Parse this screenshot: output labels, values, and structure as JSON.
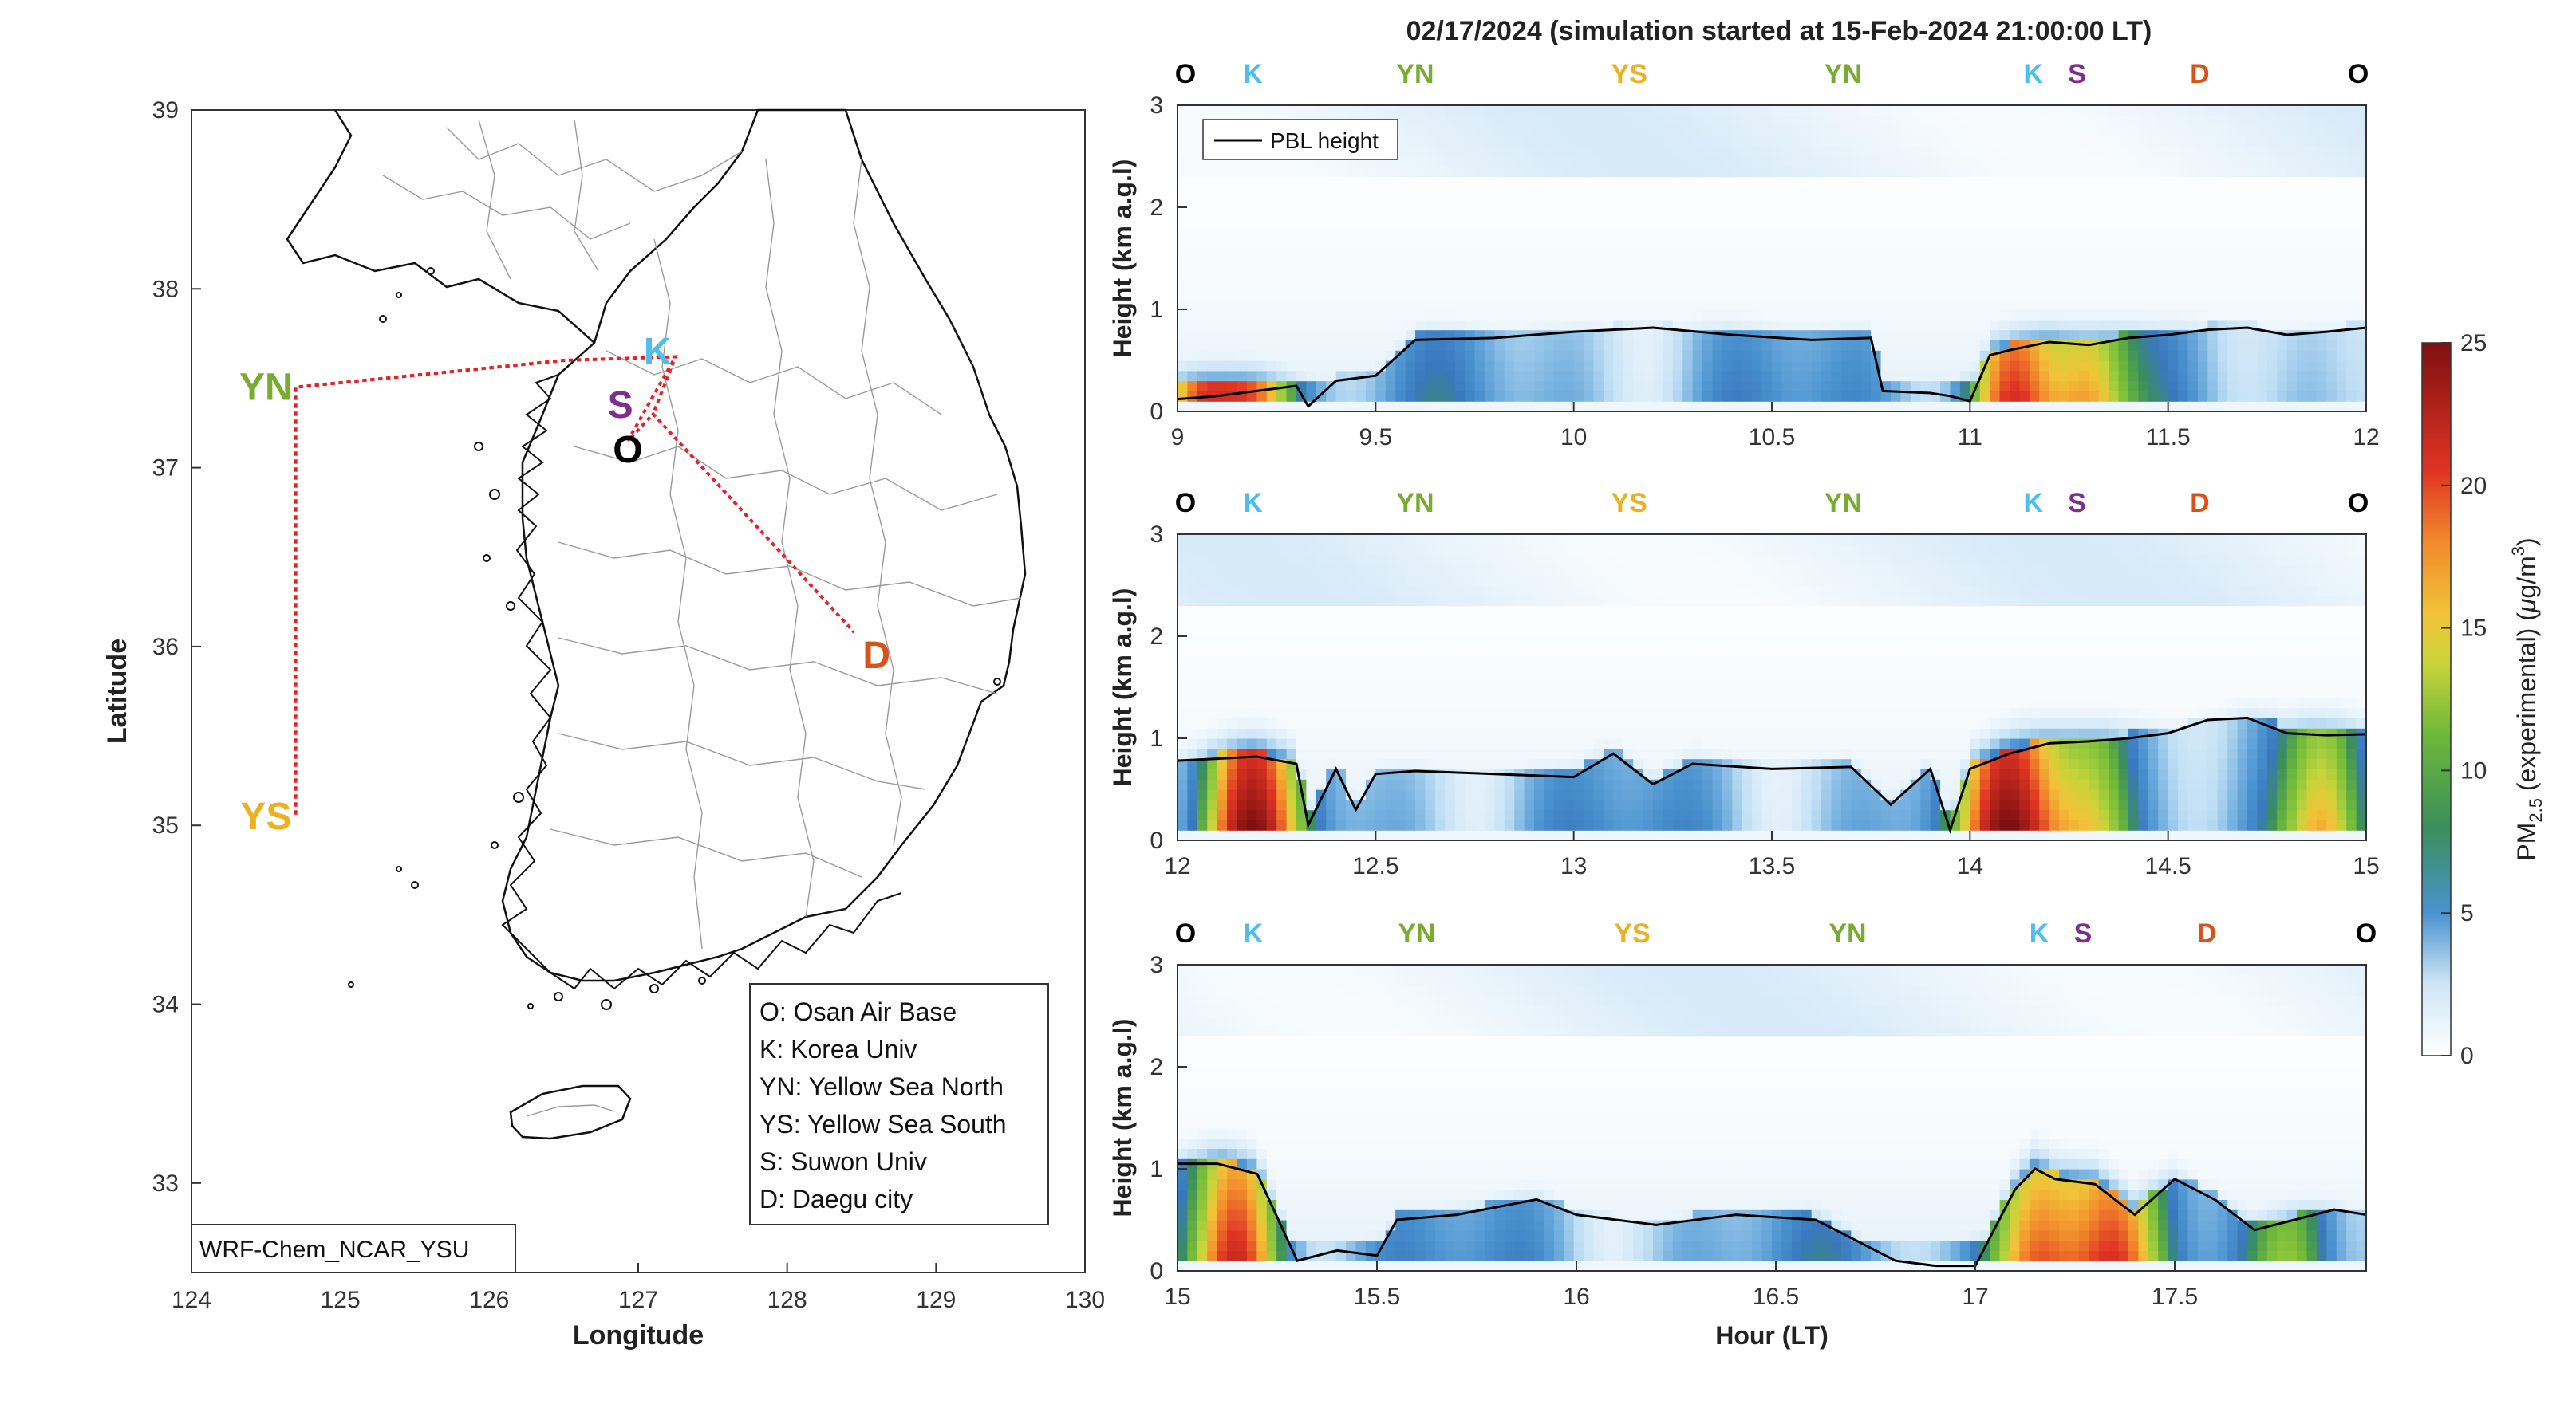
{
  "figure": {
    "title": "02/17/2024 (simulation started at 15-Feb-2024 21:00:00 LT)"
  },
  "map": {
    "model_label": "WRF-Chem_NCAR_YSU",
    "xlabel": "Longitude",
    "ylabel": "Latitude",
    "xlim": [
      124,
      130
    ],
    "ylim": [
      32.5,
      39
    ],
    "xticks": [
      "124",
      "125",
      "126",
      "127",
      "128",
      "129",
      "130"
    ],
    "yticks": [
      "33",
      "34",
      "35",
      "36",
      "37",
      "38",
      "39"
    ],
    "sites": [
      {
        "code": "O",
        "lon": 126.93,
        "lat": 37.1,
        "color": "#000000"
      },
      {
        "code": "K",
        "lon": 127.13,
        "lat": 37.65,
        "color": "#4DBEEE"
      },
      {
        "code": "YN",
        "lon": 124.5,
        "lat": 37.45,
        "color": "#77AC30"
      },
      {
        "code": "YS",
        "lon": 124.5,
        "lat": 35.05,
        "color": "#EDB120"
      },
      {
        "code": "S",
        "lon": 126.88,
        "lat": 37.35,
        "color": "#7E2F8E"
      },
      {
        "code": "D",
        "lon": 128.6,
        "lat": 35.95,
        "color": "#D95319"
      }
    ],
    "track_color": "#E8202A",
    "track": [
      [
        126.93,
        37.15
      ],
      [
        127.25,
        37.62
      ],
      [
        126.5,
        37.6
      ],
      [
        124.7,
        37.45
      ],
      [
        124.7,
        35.05
      ],
      [
        124.7,
        37.45
      ],
      [
        126.5,
        37.6
      ],
      [
        127.25,
        37.62
      ],
      [
        127.1,
        37.3
      ],
      [
        128.45,
        36.08
      ],
      [
        127.1,
        37.3
      ],
      [
        126.93,
        37.15
      ]
    ],
    "legend": [
      "O: Osan Air Base",
      "K: Korea Univ",
      "YN: Yellow Sea North",
      "YS: Yellow Sea South",
      "S: Suwon Univ",
      "D: Daegu city"
    ]
  },
  "profiles": {
    "ylabel": "Height (km a.g.l)",
    "xlabel": "Hour (LT)",
    "pbl_legend": "PBL height",
    "ylim": [
      0,
      3
    ],
    "yticks": [
      "0",
      "1",
      "2",
      "3"
    ],
    "site_colors": {
      "O": "#000000",
      "K": "#4DBEEE",
      "YN": "#77AC30",
      "YS": "#EDB120",
      "S": "#7E2F8E",
      "D": "#D95319"
    },
    "panels": [
      {
        "xlim": [
          9,
          12
        ],
        "xticks": [
          "9",
          "9.5",
          "10",
          "10.5",
          "11",
          "11.5",
          "12"
        ],
        "site_labels": [
          {
            "code": "O",
            "x": 9.02
          },
          {
            "code": "K",
            "x": 9.19
          },
          {
            "code": "YN",
            "x": 9.6
          },
          {
            "code": "YS",
            "x": 10.14
          },
          {
            "code": "YN",
            "x": 10.68
          },
          {
            "code": "K",
            "x": 11.16
          },
          {
            "code": "S",
            "x": 11.27
          },
          {
            "code": "D",
            "x": 11.58
          },
          {
            "code": "O",
            "x": 11.98
          }
        ]
      },
      {
        "xlim": [
          12,
          15
        ],
        "xticks": [
          "12",
          "12.5",
          "13",
          "13.5",
          "14",
          "14.5",
          "15"
        ],
        "site_labels": [
          {
            "code": "O",
            "x": 12.02
          },
          {
            "code": "K",
            "x": 12.19
          },
          {
            "code": "YN",
            "x": 12.6
          },
          {
            "code": "YS",
            "x": 13.14
          },
          {
            "code": "YN",
            "x": 13.68
          },
          {
            "code": "K",
            "x": 14.16
          },
          {
            "code": "S",
            "x": 14.27
          },
          {
            "code": "D",
            "x": 14.58
          },
          {
            "code": "O",
            "x": 14.98
          }
        ]
      },
      {
        "xlim": [
          15,
          17.98
        ],
        "xticks": [
          "15",
          "15.5",
          "16",
          "16.5",
          "17",
          "17.5"
        ],
        "site_labels": [
          {
            "code": "O",
            "x": 15.02
          },
          {
            "code": "K",
            "x": 15.19
          },
          {
            "code": "YN",
            "x": 15.6
          },
          {
            "code": "YS",
            "x": 16.14
          },
          {
            "code": "YN",
            "x": 16.68
          },
          {
            "code": "K",
            "x": 17.16
          },
          {
            "code": "S",
            "x": 17.27
          },
          {
            "code": "D",
            "x": 17.58
          },
          {
            "code": "O",
            "x": 17.98
          }
        ]
      }
    ]
  },
  "colorbar": {
    "label_prefix": "PM",
    "label_sub": "2.5",
    "label_mid": " (experimental) (",
    "label_mu": "μ",
    "label_unit": "g/m",
    "label_sup": "3",
    "label_end": ")",
    "ticks": [
      "0",
      "5",
      "10",
      "15",
      "20",
      "25"
    ],
    "range": [
      0,
      25
    ]
  },
  "chart_data": [
    {
      "type": "heatmap",
      "title": "02/17/2024 (simulation started at 15-Feb-2024 21:00:00 LT)",
      "xlabel": "",
      "ylabel": "Height (km a.g.l)",
      "xlim": [
        9,
        12
      ],
      "ylim": [
        0,
        3
      ],
      "series": [
        {
          "name": "PBL height",
          "x": [
            9.0,
            9.1,
            9.2,
            9.3,
            9.33,
            9.4,
            9.5,
            9.6,
            9.8,
            10.0,
            10.2,
            10.4,
            10.6,
            10.75,
            10.78,
            10.9,
            10.95,
            11.0,
            11.05,
            11.1,
            11.2,
            11.3,
            11.4,
            11.5,
            11.6,
            11.7,
            11.8,
            11.9,
            12.0
          ],
          "values": [
            0.12,
            0.15,
            0.2,
            0.25,
            0.05,
            0.3,
            0.35,
            0.7,
            0.72,
            0.78,
            0.82,
            0.75,
            0.7,
            0.72,
            0.2,
            0.18,
            0.15,
            0.1,
            0.55,
            0.6,
            0.68,
            0.65,
            0.72,
            0.75,
            0.8,
            0.82,
            0.75,
            0.78,
            0.82
          ]
        }
      ],
      "pm25_range": [
        0,
        25
      ]
    },
    {
      "type": "heatmap",
      "xlabel": "",
      "ylabel": "Height (km a.g.l)",
      "xlim": [
        12,
        15
      ],
      "ylim": [
        0,
        3
      ],
      "series": [
        {
          "name": "PBL height",
          "x": [
            12.0,
            12.1,
            12.2,
            12.3,
            12.33,
            12.4,
            12.45,
            12.5,
            12.6,
            12.8,
            13.0,
            13.1,
            13.2,
            13.3,
            13.5,
            13.7,
            13.8,
            13.9,
            13.95,
            14.0,
            14.1,
            14.2,
            14.3,
            14.4,
            14.5,
            14.6,
            14.7,
            14.8,
            14.9,
            15.0
          ],
          "values": [
            0.78,
            0.8,
            0.82,
            0.75,
            0.15,
            0.7,
            0.3,
            0.65,
            0.68,
            0.65,
            0.62,
            0.85,
            0.55,
            0.75,
            0.7,
            0.72,
            0.35,
            0.7,
            0.1,
            0.7,
            0.85,
            0.95,
            0.97,
            1.0,
            1.05,
            1.18,
            1.2,
            1.05,
            1.03,
            1.04
          ]
        }
      ],
      "pm25_range": [
        0,
        25
      ]
    },
    {
      "type": "heatmap",
      "xlabel": "Hour (LT)",
      "ylabel": "Height (km a.g.l)",
      "xlim": [
        15,
        17.98
      ],
      "ylim": [
        0,
        3
      ],
      "series": [
        {
          "name": "PBL height",
          "x": [
            15.0,
            15.1,
            15.2,
            15.3,
            15.35,
            15.4,
            15.5,
            15.55,
            15.7,
            15.9,
            16.0,
            16.2,
            16.4,
            16.6,
            16.8,
            16.9,
            17.0,
            17.1,
            17.15,
            17.2,
            17.3,
            17.4,
            17.5,
            17.6,
            17.7,
            17.8,
            17.9,
            17.98
          ],
          "values": [
            1.05,
            1.05,
            0.95,
            0.1,
            0.15,
            0.2,
            0.15,
            0.5,
            0.55,
            0.7,
            0.55,
            0.45,
            0.55,
            0.5,
            0.1,
            0.05,
            0.05,
            0.8,
            1.0,
            0.9,
            0.85,
            0.55,
            0.9,
            0.7,
            0.4,
            0.5,
            0.6,
            0.55
          ]
        }
      ],
      "pm25_range": [
        0,
        25
      ]
    }
  ]
}
